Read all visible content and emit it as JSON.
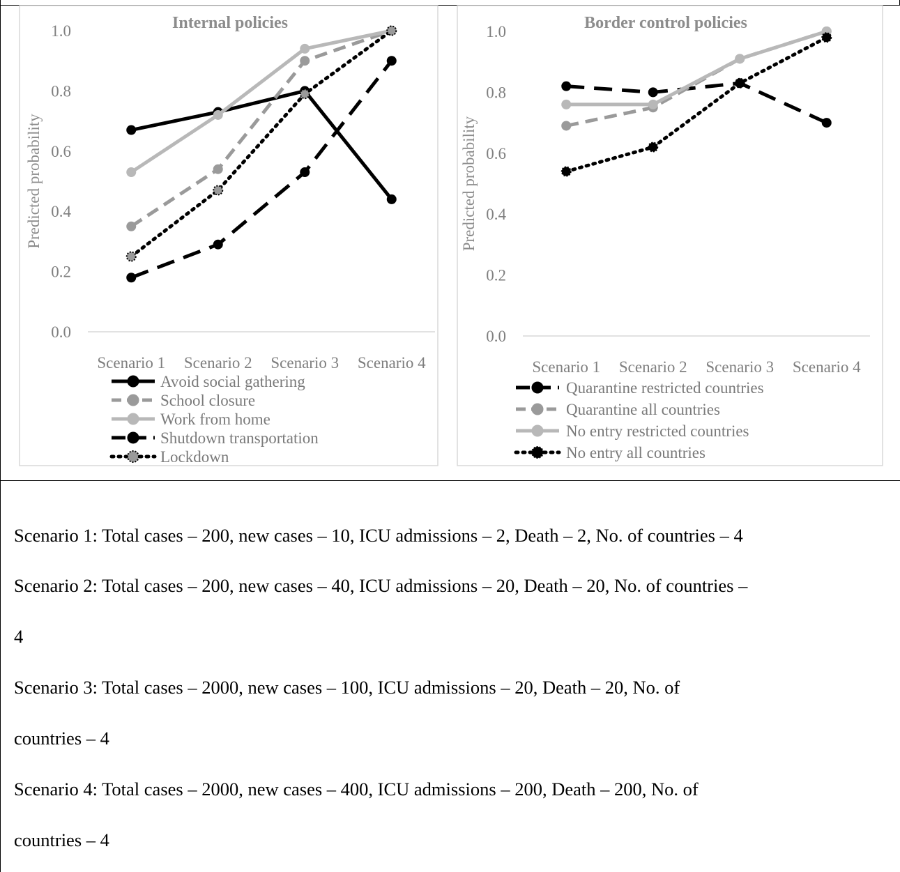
{
  "chart_data": [
    {
      "type": "line",
      "title": "Internal policies",
      "ylabel": "Predicted probability",
      "xlabel": "",
      "categories": [
        "Scenario 1",
        "Scenario 2",
        "Scenario 3",
        "Scenario 4"
      ],
      "yticks": [
        "0.0",
        "0.2",
        "0.4",
        "0.6",
        "0.8",
        "1.0"
      ],
      "ylim": [
        0,
        1
      ],
      "grid": false,
      "legend_position": "bottom",
      "series": [
        {
          "name": "Avoid social gathering",
          "values": [
            0.67,
            0.73,
            0.8,
            0.44
          ],
          "color": "#000000",
          "dash": "solid",
          "marker": "#000000"
        },
        {
          "name": "School closure",
          "values": [
            0.35,
            0.54,
            0.9,
            1.0
          ],
          "color": "#9a9a9a",
          "dash": "dashed",
          "marker": "#9a9a9a"
        },
        {
          "name": "Work from home",
          "values": [
            0.53,
            0.72,
            0.94,
            1.0
          ],
          "color": "#b8b8b8",
          "dash": "solid",
          "marker": "#b8b8b8"
        },
        {
          "name": "Shutdown transportation",
          "values": [
            0.18,
            0.29,
            0.53,
            0.9
          ],
          "color": "#000000",
          "dash": "longdash",
          "marker": "#000000"
        },
        {
          "name": "Lockdown",
          "values": [
            0.25,
            0.47,
            0.79,
            1.0
          ],
          "color": "#000000",
          "dash": "dotted",
          "marker": "#9a9a9a"
        }
      ]
    },
    {
      "type": "line",
      "title": "Border control policies",
      "ylabel": "Predicted probability",
      "xlabel": "",
      "categories": [
        "Scenario 1",
        "Scenario 2",
        "Scenario 3",
        "Scenario 4"
      ],
      "yticks": [
        "0.0",
        "0.2",
        "0.4",
        "0.6",
        "0.8",
        "1.0"
      ],
      "ylim": [
        0,
        1
      ],
      "grid": false,
      "legend_position": "bottom",
      "series": [
        {
          "name": "Quarantine restricted countries",
          "values": [
            0.82,
            0.8,
            0.83,
            0.7
          ],
          "color": "#000000",
          "dash": "longdash",
          "marker": "#000000"
        },
        {
          "name": "Quarantine all countries",
          "values": [
            0.69,
            0.75,
            0.91,
            1.0
          ],
          "color": "#9a9a9a",
          "dash": "dashed",
          "marker": "#9a9a9a"
        },
        {
          "name": "No entry restricted countries",
          "values": [
            0.76,
            0.76,
            0.91,
            1.0
          ],
          "color": "#b8b8b8",
          "dash": "solid",
          "marker": "#b8b8b8"
        },
        {
          "name": "No entry all countries",
          "values": [
            0.54,
            0.62,
            0.83,
            0.98
          ],
          "color": "#000000",
          "dash": "dotted",
          "marker": "#000000"
        }
      ]
    }
  ],
  "notes": [
    "Scenario 1: Total cases – 200, new cases – 10, ICU admissions – 2, Death – 2, No. of countries – 4",
    "Scenario 2: Total cases – 200, new cases – 40, ICU admissions – 20, Death – 20, No. of countries –",
    "4",
    "Scenario 3: Total cases – 2000, new cases – 100, ICU admissions – 20, Death – 20, No. of",
    "countries – 4",
    "Scenario 4: Total cases – 2000, new cases – 400, ICU admissions – 200, Death – 200, No. of",
    "countries – 4"
  ]
}
